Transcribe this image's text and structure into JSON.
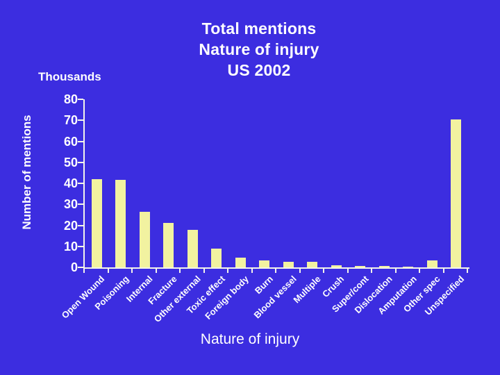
{
  "slide": {
    "title_lines": [
      "Total mentions",
      "Nature of injury",
      "US 2002"
    ],
    "caption": "Nature of injury"
  },
  "chart_data": {
    "type": "bar",
    "title": "Total mentions Nature of injury US 2002",
    "unit_label": "Thousands",
    "ylabel": "Number of mentions",
    "xlabel": "Nature of injury",
    "ylim": [
      0,
      80
    ],
    "ytick_step": 10,
    "grid": false,
    "legend": "none",
    "categories": [
      "Open Wound",
      "Poisoning",
      "Internal",
      "Fracture",
      "Other external",
      "Toxic effect",
      "Foreign body",
      "Burn",
      "Blood vessel",
      "Multiple",
      "Crush",
      "Super/cont",
      "Dislocation",
      "Amputation",
      "Other spec",
      "Unspecified"
    ],
    "values": [
      42,
      41.5,
      26.5,
      21,
      18,
      9,
      4.7,
      3.4,
      2.8,
      2.8,
      1,
      0.8,
      0.8,
      0.3,
      3.2,
      70.5
    ],
    "colors": {
      "background": "#3c2de0",
      "bar": "#f2f2a0",
      "axis": "#f4f4ea",
      "text": "#ffffff"
    }
  }
}
